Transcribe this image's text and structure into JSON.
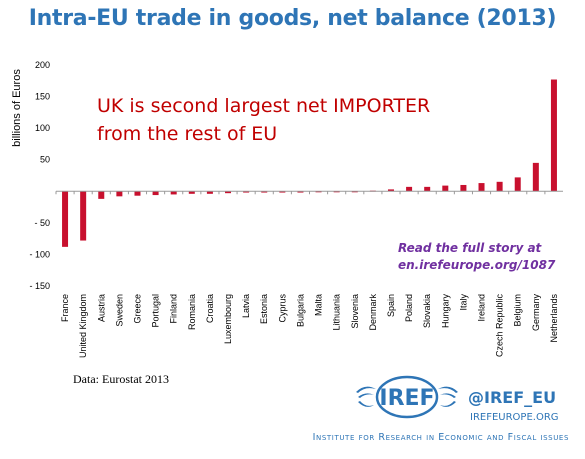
{
  "title": "Intra-EU trade in goods, net balance (2013)",
  "annotation": "UK is second largest net IMPORTER\nfrom the rest of EU",
  "story_line1": "Read the full story at",
  "story_line2": "en.irefeurope.org/1087",
  "source": "Data:  Eurostat 2013",
  "logo_text": "IREF",
  "twitter_handle": "@IREF_EU",
  "website": "IREFEUROPE.ORG",
  "institute": "Institute for Research in Economic and Fiscal issues",
  "colors": {
    "bar": "#c8102e",
    "title": "#2e75b6",
    "annotation": "#c00000",
    "story": "#7030a0"
  },
  "chart_data": {
    "type": "bar",
    "ylabel": "billions of Euros",
    "ylim": [
      -150,
      200
    ],
    "yticks": [
      200,
      150,
      100,
      50,
      0,
      -50,
      -100,
      -150
    ],
    "ytick_labels": [
      "200",
      "150",
      "100",
      "50",
      "",
      "- 50",
      "- 100",
      "- 150"
    ],
    "grid": false,
    "categories": [
      "France",
      "United Kingdom",
      "Austria",
      "Sweden",
      "Greece",
      "Portugal",
      "Finland",
      "Romania",
      "Croatia",
      "Luxembourg",
      "Latvia",
      "Estonia",
      "Cyprus",
      "Bulgaria",
      "Malta",
      "Lithuania",
      "Slovenia",
      "Denmark",
      "Spain",
      "Poland",
      "Slovakia",
      "Hungary",
      "Italy",
      "Ireland",
      "Czech Republic",
      "Belgium",
      "Germany",
      "Netherlands"
    ],
    "values": [
      -88,
      -78,
      -12,
      -8,
      -7,
      -6,
      -5,
      -4,
      -4,
      -3,
      -2,
      -2,
      -2,
      -2,
      -1,
      -1,
      -1,
      1,
      3,
      7,
      7,
      9,
      10,
      13,
      15,
      22,
      45,
      177
    ]
  }
}
